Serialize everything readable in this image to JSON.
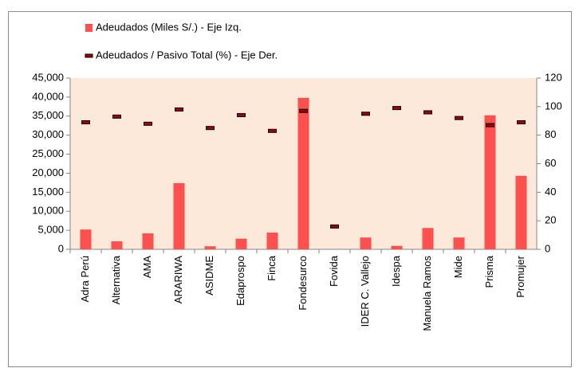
{
  "chart_data": {
    "type": "bar",
    "categories": [
      "Adra Perú",
      "Alternativa",
      "AMA",
      "ARARIWA",
      "ASIDME",
      "Edaprospo",
      "Finca",
      "Fondesurco",
      "Fovida",
      "IDER C. Vallejo",
      "Idespa",
      "Manuela Ramos",
      "Mide",
      "Prisma",
      "Promujer"
    ],
    "series": [
      {
        "name": "Adeudados (Miles S/.) - Eje Izq.",
        "type": "bar",
        "color": "#ff5050",
        "values": [
          5200,
          2100,
          4200,
          17400,
          800,
          2800,
          4400,
          39800,
          0,
          3100,
          900,
          5600,
          3100,
          35200,
          19300
        ]
      },
      {
        "name": "Adeudados / Pasivo Total (%) - Eje Der.",
        "type": "marker",
        "axis": "y2",
        "color": "#a00000",
        "values": [
          89,
          93,
          88,
          98,
          85,
          94,
          83,
          97,
          16,
          95,
          99,
          96,
          92,
          87,
          89
        ]
      }
    ],
    "ylim": [
      0,
      45000
    ],
    "yticks": [
      0,
      {
        "value": 5000,
        "label": "5,000"
      },
      {
        "value": 10000,
        "label": "10,000"
      },
      {
        "value": 15000,
        "label": "15,000"
      },
      {
        "value": 20000,
        "label": "20,000"
      },
      {
        "value": 25000,
        "label": "25,000"
      },
      {
        "value": 30000,
        "label": "30,000"
      },
      {
        "value": 35000,
        "label": "35,000"
      },
      {
        "value": 40000,
        "label": "40,000"
      },
      {
        "value": 45000,
        "label": "45,000"
      }
    ],
    "y2lim": [
      0,
      120
    ],
    "y2ticks": [
      0,
      20,
      40,
      60,
      80,
      100,
      120
    ],
    "plot_background": "#fde9d9",
    "legend": "top-left"
  }
}
